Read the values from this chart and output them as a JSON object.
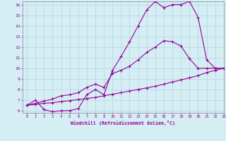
{
  "line1_x": [
    0,
    1,
    2,
    3,
    4,
    5,
    6,
    7,
    8,
    9,
    10,
    11,
    12,
    13,
    14,
    15,
    16,
    17,
    18,
    19,
    20,
    21,
    22,
    23
  ],
  "line1_y": [
    6.5,
    7.0,
    6.1,
    5.9,
    6.0,
    6.0,
    6.2,
    7.5,
    8.0,
    7.5,
    9.8,
    11.1,
    12.5,
    14.0,
    15.5,
    16.3,
    15.7,
    16.0,
    16.0,
    16.3,
    14.8,
    10.8,
    10.0,
    10.0
  ],
  "line2_x": [
    0,
    2,
    3,
    4,
    5,
    6,
    7,
    8,
    9,
    10,
    11,
    12,
    13,
    14,
    15,
    16,
    17,
    18,
    19,
    20,
    21,
    22,
    23
  ],
  "line2_y": [
    6.5,
    6.9,
    7.1,
    7.4,
    7.5,
    7.7,
    8.2,
    8.5,
    8.2,
    9.5,
    9.8,
    10.2,
    10.8,
    11.5,
    12.0,
    12.6,
    12.5,
    12.1,
    10.9,
    10.0,
    10.0,
    10.0,
    10.0
  ],
  "line3_x": [
    0,
    1,
    2,
    3,
    4,
    5,
    6,
    7,
    8,
    9,
    10,
    11,
    12,
    13,
    14,
    15,
    16,
    17,
    18,
    19,
    20,
    21,
    22,
    23
  ],
  "line3_y": [
    6.5,
    6.6,
    6.7,
    6.75,
    6.85,
    6.95,
    7.05,
    7.15,
    7.25,
    7.4,
    7.55,
    7.7,
    7.85,
    8.0,
    8.15,
    8.3,
    8.5,
    8.7,
    8.9,
    9.1,
    9.3,
    9.6,
    9.8,
    10.0
  ],
  "line_color": "#990099",
  "marker": "D",
  "marker_size": 1.8,
  "line_width": 0.8,
  "bg_color": "#d4eef4",
  "grid_color": "#b0ccdd",
  "axis_color": "#990099",
  "tick_color": "#990099",
  "xlabel": "Windchill (Refroidissement éolien,°C)",
  "xlim": [
    -0.5,
    23
  ],
  "ylim": [
    5.8,
    16.3
  ],
  "xticks": [
    0,
    1,
    2,
    3,
    4,
    5,
    6,
    7,
    8,
    9,
    10,
    11,
    12,
    13,
    14,
    15,
    16,
    17,
    18,
    19,
    20,
    21,
    22,
    23
  ],
  "yticks": [
    6,
    7,
    8,
    9,
    10,
    11,
    12,
    13,
    14,
    15,
    16
  ]
}
